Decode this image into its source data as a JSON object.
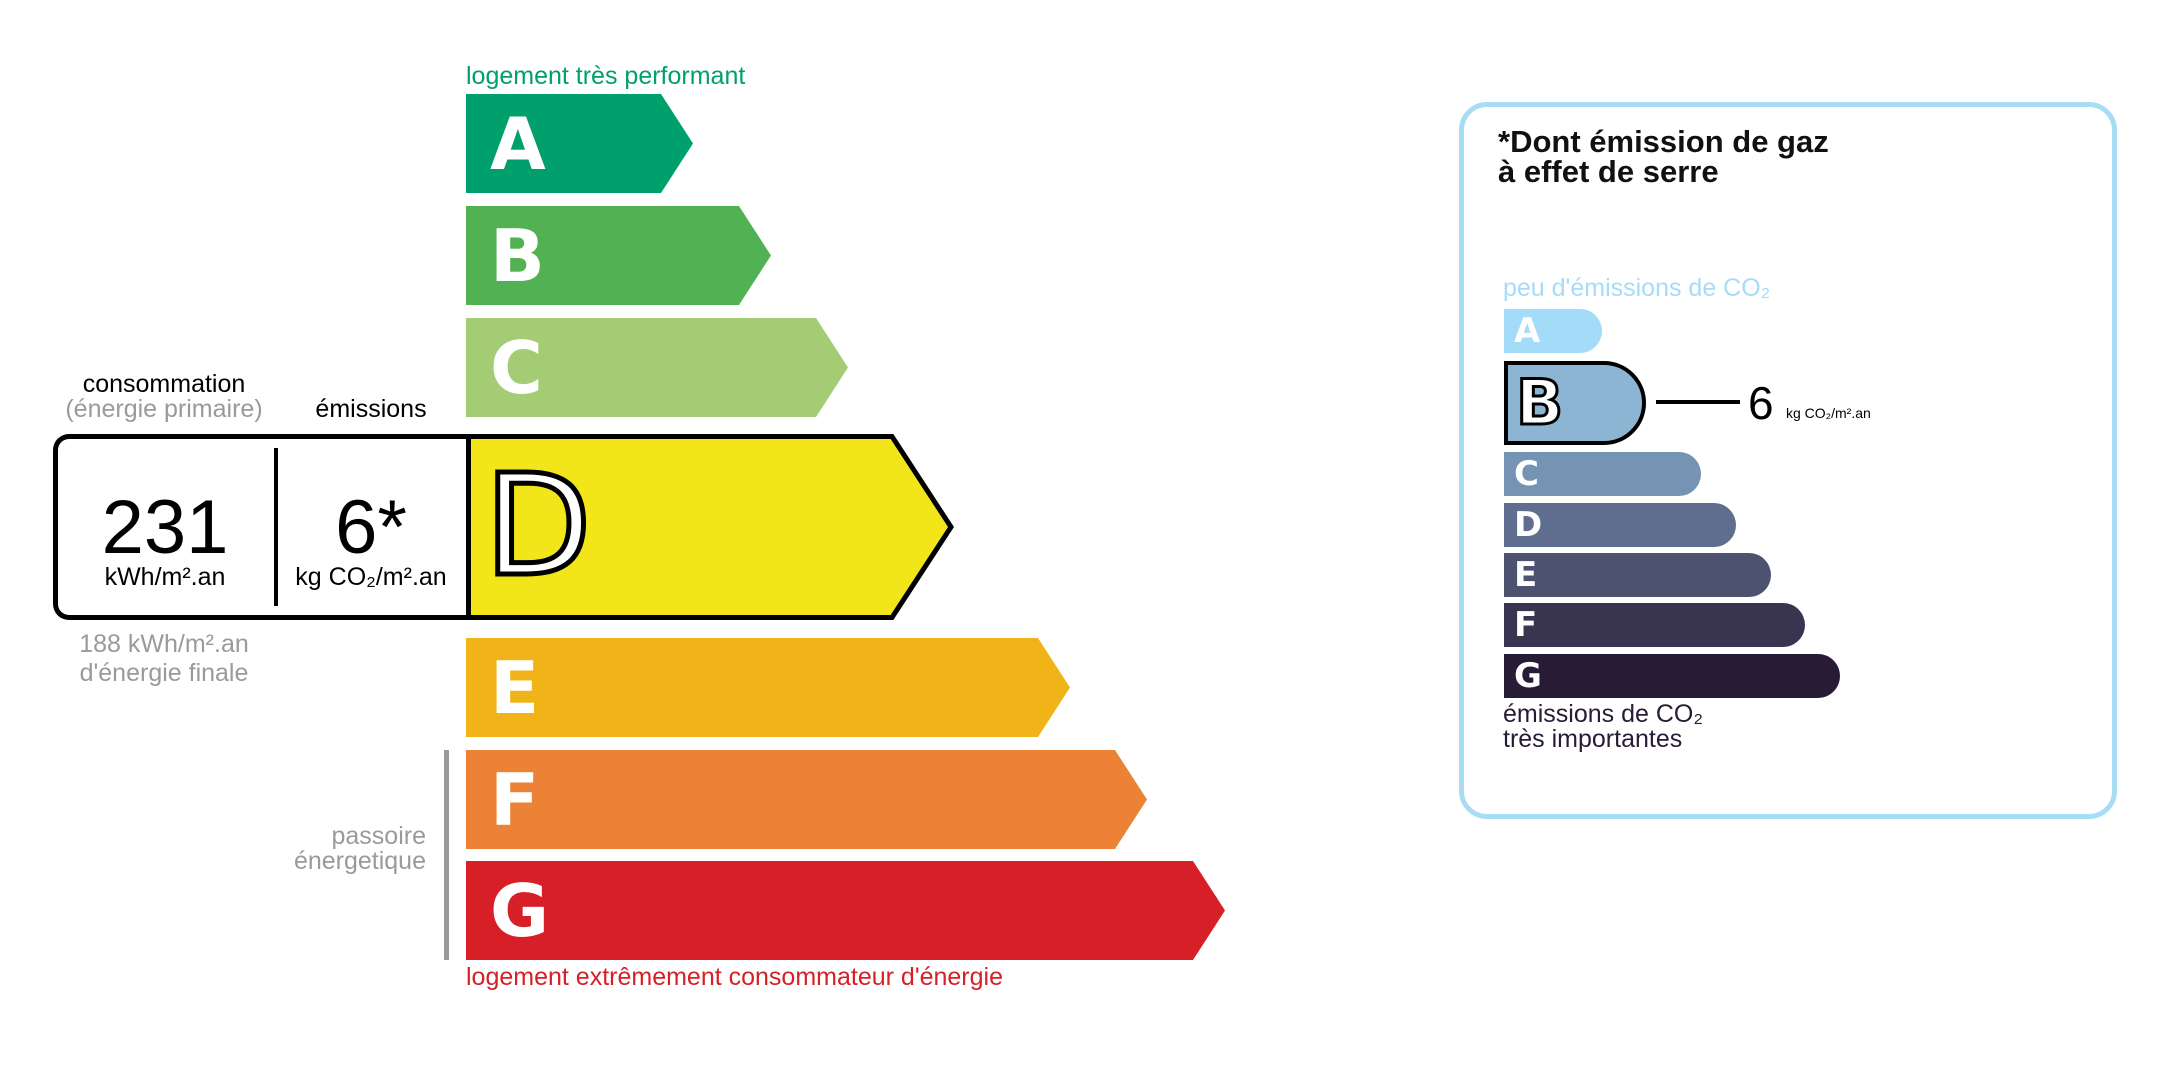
{
  "energy": {
    "top_label": "logement très performant",
    "bottom_label": "logement extrêmement consommateur d'énergie",
    "passoire_label": [
      "passoire",
      "énergetique"
    ],
    "classes": [
      {
        "letter": "A",
        "color": "#00a06d"
      },
      {
        "letter": "B",
        "color": "#52b153"
      },
      {
        "letter": "C",
        "color": "#a3cc74"
      },
      {
        "letter": "D",
        "color": "#f2e61a"
      },
      {
        "letter": "E",
        "color": "#f0b418"
      },
      {
        "letter": "F",
        "color": "#eb8235"
      },
      {
        "letter": "G",
        "color": "#d61f26"
      }
    ],
    "current_class": "D",
    "consumption_label": "consommation",
    "consumption_sublabel": "(énergie primaire)",
    "emissions_label": "émissions",
    "consumption_value": "231",
    "consumption_unit": "kWh/m².an",
    "emissions_value": "6*",
    "emissions_unit": "kg CO₂/m².an",
    "final_energy_value": "188 kWh/m².an",
    "final_energy_label": "d'énergie finale"
  },
  "ges": {
    "title_line1": "*Dont émission de gaz",
    "title_line2": "à effet de serre",
    "top_label": "peu d'émissions de CO₂",
    "bottom_label_line1": "émissions de CO₂",
    "bottom_label_line2": "très importantes",
    "classes": [
      {
        "letter": "A",
        "color": "#a4dbf8"
      },
      {
        "letter": "B",
        "color": "#8cb4d3"
      },
      {
        "letter": "C",
        "color": "#7593b2"
      },
      {
        "letter": "D",
        "color": "#5f6e8f"
      },
      {
        "letter": "E",
        "color": "#4d5271"
      },
      {
        "letter": "F",
        "color": "#393551"
      },
      {
        "letter": "G",
        "color": "#281b35"
      }
    ],
    "current_class": "B",
    "value": "6",
    "unit": "kg CO₂/m².an",
    "border_color": "#a8dcf5"
  }
}
